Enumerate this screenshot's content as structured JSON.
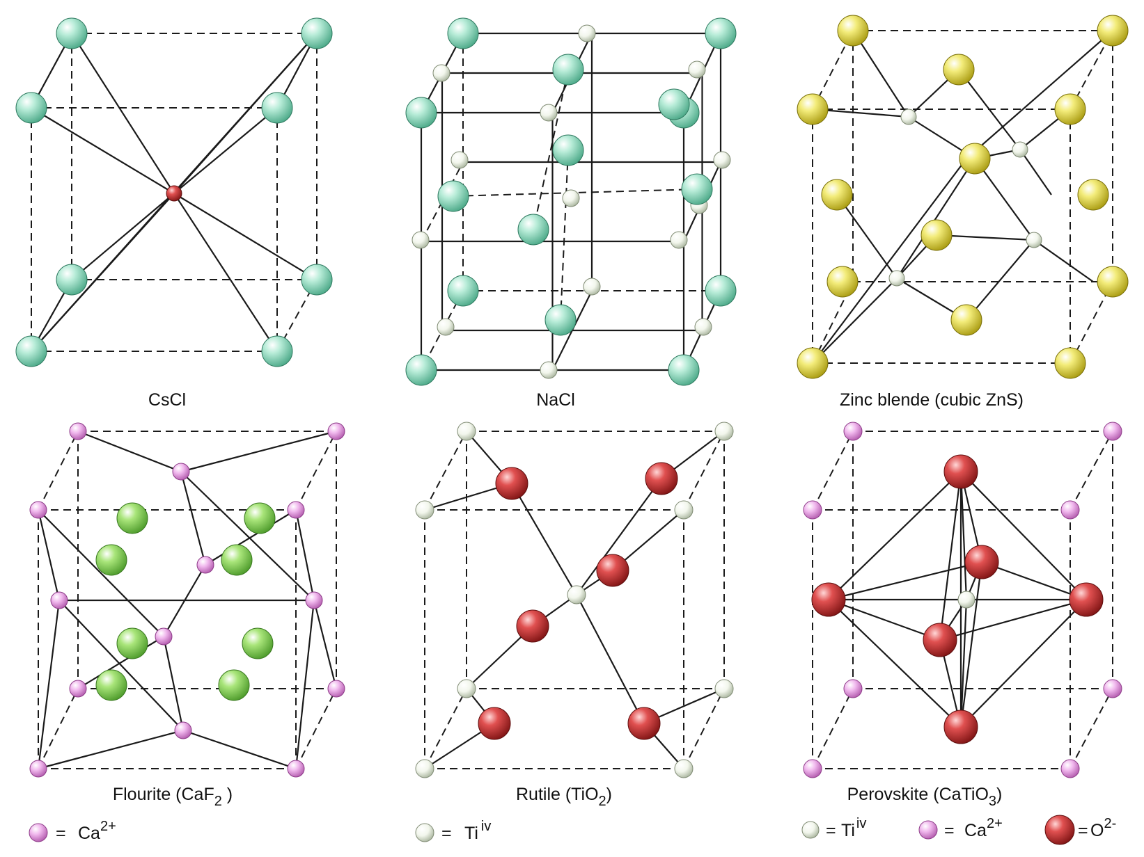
{
  "colors": {
    "background": "#ffffff",
    "line": "#1a1a1a",
    "cs_green": "#7fd0b2",
    "na_green": "#7fd0b2",
    "zn_yellow": "#e7d84a",
    "ca_green": "#8fd45e",
    "ca_pink": "#e59be0",
    "ti_white": "#eef3e6",
    "o_red": "#d23a3a",
    "cl_red": "#e0502f"
  },
  "structures": [
    {
      "key": "cscl",
      "caption": "CsCl"
    },
    {
      "key": "nacl",
      "caption": "NaCl"
    },
    {
      "key": "zns",
      "caption": "Zinc blende (cubic ZnS)"
    },
    {
      "key": "caf2",
      "caption_main": "Flourite (CaF",
      "caption_sub": "2",
      "caption_tail": " )"
    },
    {
      "key": "tio2",
      "caption_main": "Rutile (TiO",
      "caption_sub": "2",
      "caption_tail": ")"
    },
    {
      "key": "catio3",
      "caption_main": "Perovskite (CaTiO",
      "caption_sub": "3",
      "caption_tail": ")"
    }
  ],
  "legend": [
    {
      "key": "ca-left",
      "eq": "=",
      "symbol": "Ca",
      "sup": "2+",
      "atom": "pink"
    },
    {
      "key": "ti-mid",
      "eq": "=",
      "symbol": "Ti",
      "sup": "iv",
      "atom": "white"
    },
    {
      "key": "ti-right",
      "eq": "=",
      "symbol": "Ti",
      "sup": "iv",
      "atom": "white"
    },
    {
      "key": "ca-right",
      "eq": "=",
      "symbol": "Ca",
      "sup": "2+",
      "atom": "pink"
    },
    {
      "key": "o-right",
      "eq": "=",
      "symbol": "O",
      "sup": "2-",
      "atom": "red"
    }
  ]
}
